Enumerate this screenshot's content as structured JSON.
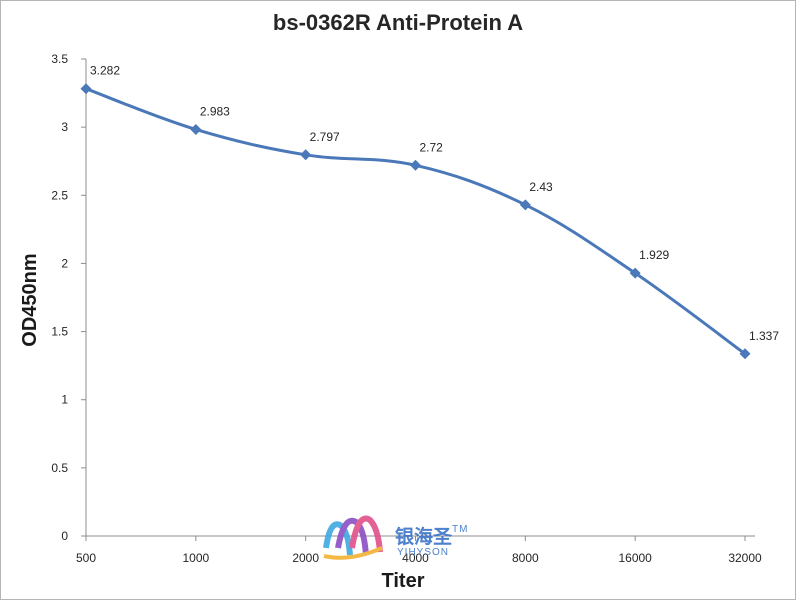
{
  "chart_data": {
    "type": "line",
    "title": "bs-0362R Anti-Protein A",
    "xlabel": "Titer",
    "ylabel": "OD450nm",
    "categories": [
      "500",
      "1000",
      "2000",
      "4000",
      "8000",
      "16000",
      "32000"
    ],
    "series": [
      {
        "values": [
          3.282,
          2.983,
          2.797,
          2.72,
          2.43,
          1.929,
          1.337
        ],
        "labels": [
          "3.282",
          "2.983",
          "2.797",
          "2.72",
          "2.43",
          "1.929",
          "1.337"
        ],
        "color": "#4a78b8"
      }
    ],
    "ylim": [
      0,
      3.5
    ],
    "yticks": [
      "0",
      "0.5",
      "1",
      "1.5",
      "2",
      "2.5",
      "3",
      "3.5"
    ],
    "grid": false,
    "legend": "none"
  },
  "watermark": {
    "brand": "银海圣",
    "trademark": "TM",
    "sub": "YIHYSON"
  }
}
